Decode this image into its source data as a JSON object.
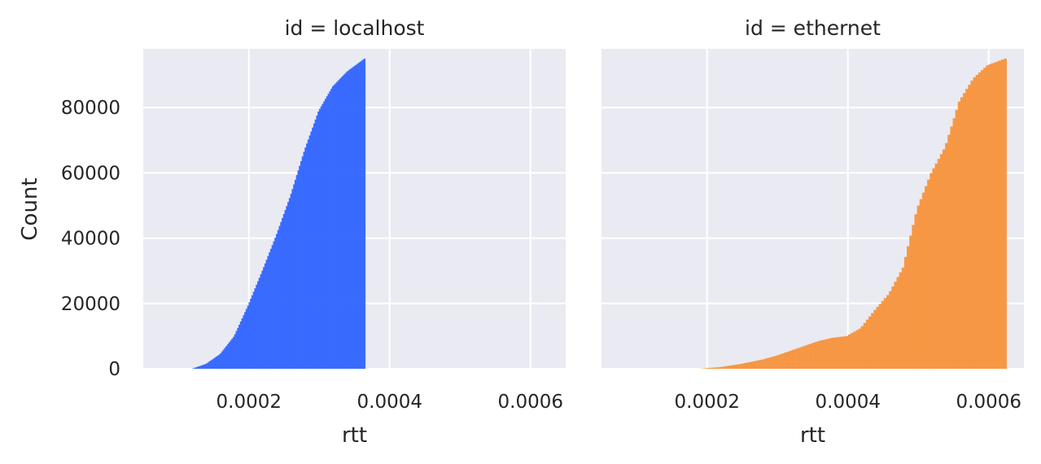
{
  "chart_data": [
    {
      "type": "histogram",
      "cumulative": true,
      "title": "id = localhost",
      "xlabel": "rtt",
      "ylabel": "Count",
      "xlim": [
        5e-05,
        0.00065
      ],
      "ylim": [
        0,
        98000
      ],
      "xticks": [
        0.0002,
        0.0004,
        0.0006
      ],
      "xtick_labels": [
        "0.0002",
        "0.0004",
        "0.0006"
      ],
      "yticks": [
        0,
        20000,
        40000,
        60000,
        80000
      ],
      "ytick_labels": [
        "0",
        "20000",
        "40000",
        "60000",
        "80000"
      ],
      "grid": true,
      "color": "#3366ff",
      "series": [
        {
          "x": [
            0.00012,
            0.00014,
            0.00016,
            0.00018,
            0.0002,
            0.00022,
            0.00024,
            0.00026,
            0.00028,
            0.0003,
            0.00032,
            0.00034,
            0.000365
          ],
          "y": [
            0,
            1500,
            4500,
            10000,
            19500,
            30000,
            41000,
            53000,
            67000,
            79000,
            86500,
            91000,
            95000
          ]
        }
      ]
    },
    {
      "type": "histogram",
      "cumulative": true,
      "title": "id = ethernet",
      "xlabel": "rtt",
      "ylabel": "",
      "xlim": [
        5e-05,
        0.00065
      ],
      "ylim": [
        0,
        98000
      ],
      "xticks": [
        0.0002,
        0.0004,
        0.0006
      ],
      "xtick_labels": [
        "0.0002",
        "0.0004",
        "0.0006"
      ],
      "yticks": [
        0,
        20000,
        40000,
        60000,
        80000
      ],
      "grid": true,
      "color": "#f7943c",
      "series": [
        {
          "x": [
            0.00019,
            0.00022,
            0.00025,
            0.00028,
            0.0003,
            0.00032,
            0.00034,
            0.00036,
            0.00038,
            0.0004,
            0.00042,
            0.00044,
            0.00046,
            0.00048,
            0.0005,
            0.00052,
            0.00054,
            0.00056,
            0.00058,
            0.0006,
            0.000625
          ],
          "y": [
            0,
            500,
            1500,
            2800,
            4000,
            5500,
            7000,
            8500,
            9500,
            10000,
            12500,
            18000,
            23000,
            31000,
            49000,
            60000,
            68000,
            82000,
            89000,
            93000,
            95000
          ]
        }
      ]
    }
  ]
}
